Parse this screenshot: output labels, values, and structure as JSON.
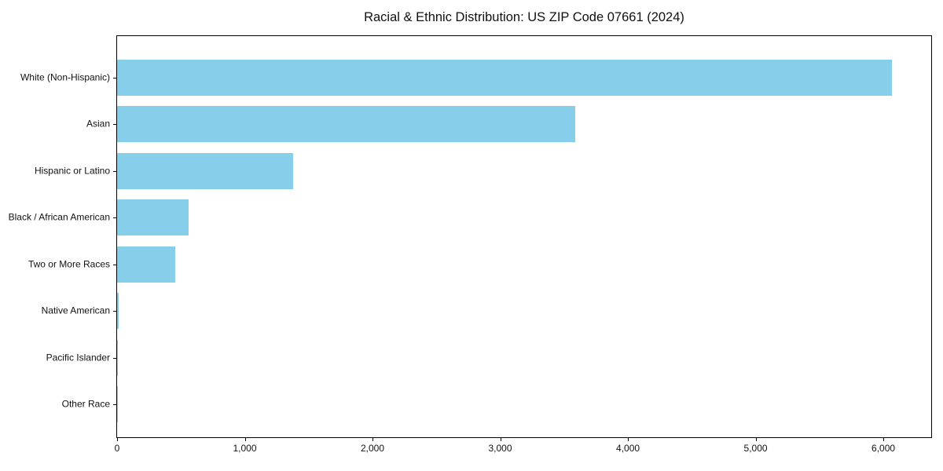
{
  "chart_data": {
    "type": "bar",
    "orientation": "horizontal",
    "title": "Racial & Ethnic Distribution: US ZIP Code 07661 (2024)",
    "xlabel": "",
    "ylabel": "",
    "categories": [
      "White (Non-Hispanic)",
      "Asian",
      "Hispanic or Latino",
      "Black / African American",
      "Two or More Races",
      "Native American",
      "Pacific Islander",
      "Other Race"
    ],
    "values": [
      6070,
      3590,
      1380,
      560,
      455,
      10,
      3,
      2
    ],
    "xlim": [
      0,
      6375
    ],
    "xticks": [
      0,
      1000,
      2000,
      3000,
      4000,
      5000,
      6000
    ],
    "xtick_labels": [
      "0",
      "1,000",
      "2,000",
      "3,000",
      "4,000",
      "5,000",
      "6,000"
    ],
    "bar_color": "#87CEEB",
    "grid": false,
    "legend_visible": false
  }
}
